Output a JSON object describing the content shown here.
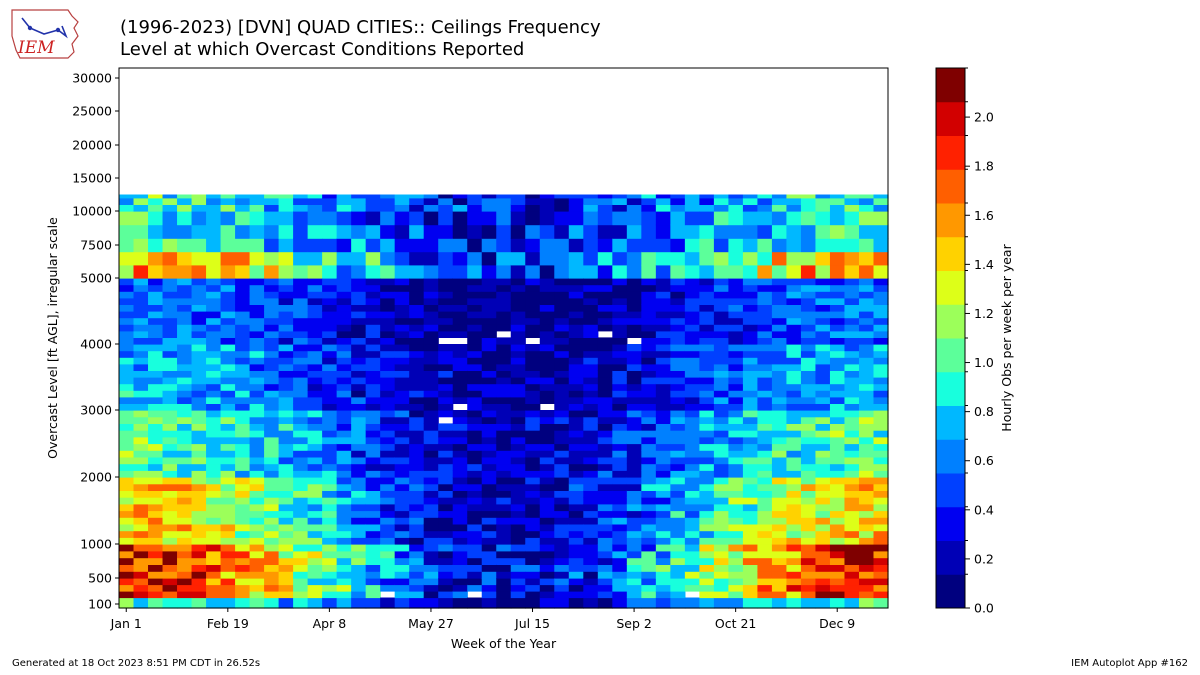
{
  "header": {
    "title_line1": "(1996-2023) [DVN] QUAD CITIES:: Ceilings Frequency",
    "title_line2": "Level at which Overcast Conditions Reported",
    "logo_text": "IEM"
  },
  "footer": {
    "generated": "Generated at 18 Oct 2023 8:51 PM CDT in 26.52s",
    "app": "IEM Autoplot App #162"
  },
  "chart_data": {
    "type": "heatmap",
    "title": "(1996-2023) [DVN] QUAD CITIES:: Ceilings Frequency",
    "subtitle": "Level at which Overcast Conditions Reported",
    "xlabel": "Week of the Year",
    "ylabel": "Overcast Level [ft AGL], irregular scale",
    "colorbar_label": "Hourly Obs per week per year",
    "x_ticks": [
      "Jan 1",
      "Feb 19",
      "Apr 8",
      "May 27",
      "Jul 15",
      "Sep 2",
      "Oct 21",
      "Dec 9"
    ],
    "x_tick_weeks": [
      1,
      8,
      15,
      22,
      29,
      36,
      43,
      50
    ],
    "y_ticks": [
      "100",
      "500",
      "1000",
      "2000",
      "3000",
      "4000",
      "5000",
      "7500",
      "10000",
      "15000",
      "20000",
      "25000",
      "30000"
    ],
    "weeks": 53,
    "levels_ft": [
      100,
      200,
      300,
      400,
      500,
      600,
      700,
      800,
      900,
      1000,
      1100,
      1200,
      1300,
      1400,
      1500,
      1600,
      1700,
      1800,
      1900,
      2000,
      2100,
      2200,
      2300,
      2400,
      2500,
      2600,
      2700,
      2800,
      2900,
      3000,
      3100,
      3200,
      3300,
      3400,
      3500,
      3600,
      3700,
      3800,
      3900,
      4000,
      4100,
      4200,
      4300,
      4400,
      4500,
      4600,
      4700,
      4800,
      4900,
      5000,
      6000,
      7000,
      8000,
      9000,
      10000,
      11000,
      12000
    ],
    "colorbar_ticks": [
      "0.0",
      "0.2",
      "0.4",
      "0.6",
      "0.8",
      "1.0",
      "1.2",
      "1.4",
      "1.6",
      "1.8",
      "2.0"
    ],
    "colorbar_range": [
      0.0,
      2.2
    ],
    "colormap": [
      "#00007f",
      "#0000b6",
      "#0000f1",
      "#0040ff",
      "#0080ff",
      "#00b8ff",
      "#18ffdd",
      "#5cff9a",
      "#9cff5a",
      "#ddff18",
      "#ffd200",
      "#ff9800",
      "#ff5f00",
      "#ff2100",
      "#d20000",
      "#7f0000"
    ],
    "notes": "Weekly frequency estimated per altitude band; highest frequencies (1.6-2.2) in winter below 1000 ft and near 5000-6000 ft; summer frequencies mostly 0.0-0.3 from 1000-5000 ft; no data above 12000 ft."
  }
}
